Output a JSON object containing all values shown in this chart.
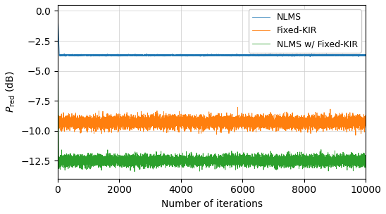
{
  "title": "",
  "xlabel": "Number of iterations",
  "ylabel": "$P_{\\mathrm{red}}$ (dB)",
  "xlim": [
    0,
    10000
  ],
  "ylim": [
    -14,
    0.5
  ],
  "yticks": [
    0.0,
    -2.5,
    -5.0,
    -7.5,
    -10.0,
    -12.5
  ],
  "xticks": [
    0,
    2000,
    4000,
    6000,
    8000,
    10000
  ],
  "n_points": 10000,
  "nlms_level": -3.7,
  "nlms_converge_point": 50,
  "nlms_noise": 0.03,
  "fixed_kir_level": -9.3,
  "fixed_kir_noise": 0.28,
  "nlms_fixed_kir_level": -12.5,
  "nlms_fixed_kir_noise": 0.25,
  "nlms_fixed_kir_converge_point": 30,
  "colors": {
    "nlms": "#1f77b4",
    "fixed_kir": "#ff7f0e",
    "nlms_fixed_kir": "#2ca02c"
  },
  "legend_labels": [
    "NLMS",
    "Fixed-KIR",
    "NLMS w/ Fixed-KIR"
  ],
  "linewidth": 0.6,
  "figsize": [
    5.48,
    3.04
  ],
  "dpi": 100
}
